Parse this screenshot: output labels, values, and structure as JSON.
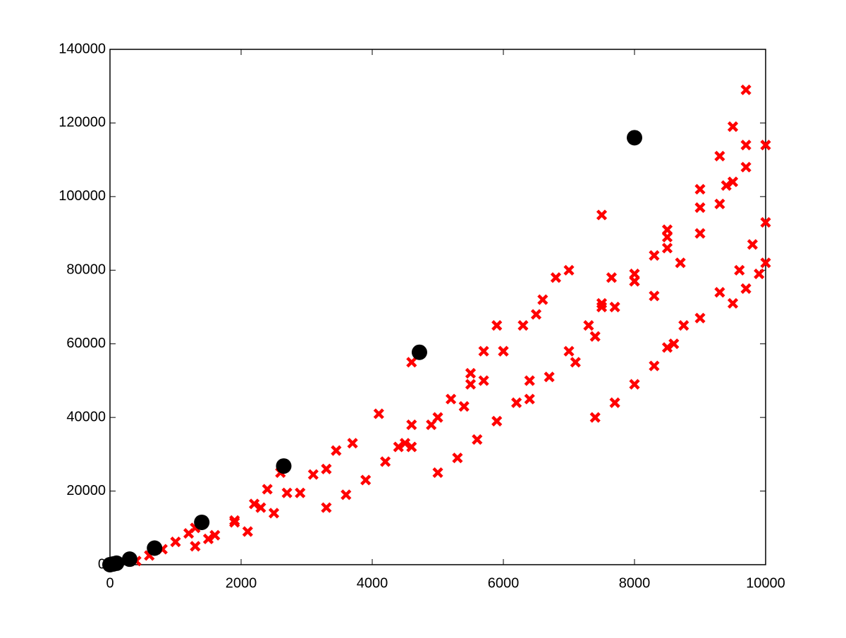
{
  "chart_data": {
    "type": "scatter",
    "xlim": [
      0,
      10000
    ],
    "xticks": [
      0,
      2000,
      4000,
      6000,
      8000,
      10000
    ],
    "ylim": [
      0,
      140000
    ],
    "yticks": [
      0,
      20000,
      40000,
      60000,
      80000,
      100000,
      120000,
      140000
    ],
    "series": [
      {
        "color": "#ff0000",
        "marker": "x",
        "x": [
          400,
          600,
          800,
          1000,
          1200,
          1300,
          1300,
          1600,
          1900,
          2200,
          2400,
          2600,
          1500,
          1900,
          2300,
          2700,
          3100,
          3450,
          2100,
          2500,
          2900,
          3300,
          3700,
          4100,
          4600,
          3300,
          3600,
          3900,
          4200,
          4400,
          4600,
          4600,
          4900,
          5200,
          5500,
          5700,
          5900,
          5000,
          5300,
          5600,
          5900,
          6200,
          6400,
          4500,
          5000,
          5500,
          6000,
          6500,
          7000,
          7500,
          8000,
          5400,
          5700,
          6000,
          6300,
          6600,
          6800,
          6400,
          6700,
          7000,
          7300,
          7500,
          7650,
          7100,
          7400,
          7700,
          8000,
          8300,
          8500,
          7400,
          7700,
          8000,
          8300,
          8500,
          8750,
          7500,
          8000,
          8500,
          9000,
          9300,
          9500,
          9700,
          8300,
          8700,
          9000,
          9300,
          9500,
          9700,
          8600,
          9000,
          9300,
          9600,
          9800,
          10000,
          8000,
          8500,
          9000,
          9400,
          9700,
          10000,
          9500,
          9700,
          9900,
          10000
        ],
        "y": [
          1000,
          2500,
          4200,
          6200,
          8500,
          10000,
          5000,
          8000,
          12000,
          16500,
          20500,
          25000,
          7000,
          11500,
          15500,
          19500,
          24500,
          31000,
          9000,
          14000,
          19500,
          26000,
          33000,
          41000,
          55000,
          15500,
          19000,
          23000,
          28000,
          32000,
          38000,
          32000,
          38000,
          45000,
          52000,
          58000,
          65000,
          25000,
          29000,
          34000,
          39000,
          44000,
          50000,
          33000,
          40000,
          49000,
          58000,
          68000,
          80000,
          95000,
          116000,
          43000,
          50000,
          58000,
          65000,
          72000,
          78000,
          45000,
          51000,
          58000,
          65000,
          71000,
          78000,
          55000,
          62000,
          70000,
          77000,
          84000,
          91000,
          40000,
          44000,
          49000,
          54000,
          59000,
          65000,
          70000,
          79000,
          89000,
          102000,
          111000,
          119000,
          129000,
          73000,
          82000,
          90000,
          98000,
          104000,
          114000,
          60000,
          67000,
          74000,
          80000,
          87000,
          93000,
          77000,
          86000,
          97000,
          103000,
          108000,
          114000,
          71000,
          75000,
          79000,
          82000
        ]
      },
      {
        "color": "#000000",
        "marker": "circle",
        "x": [
          0,
          50,
          100,
          300,
          680,
          1400,
          2650,
          4720,
          8000
        ],
        "y": [
          0,
          200,
          400,
          1500,
          4500,
          11500,
          26800,
          57700,
          116000
        ]
      }
    ]
  }
}
